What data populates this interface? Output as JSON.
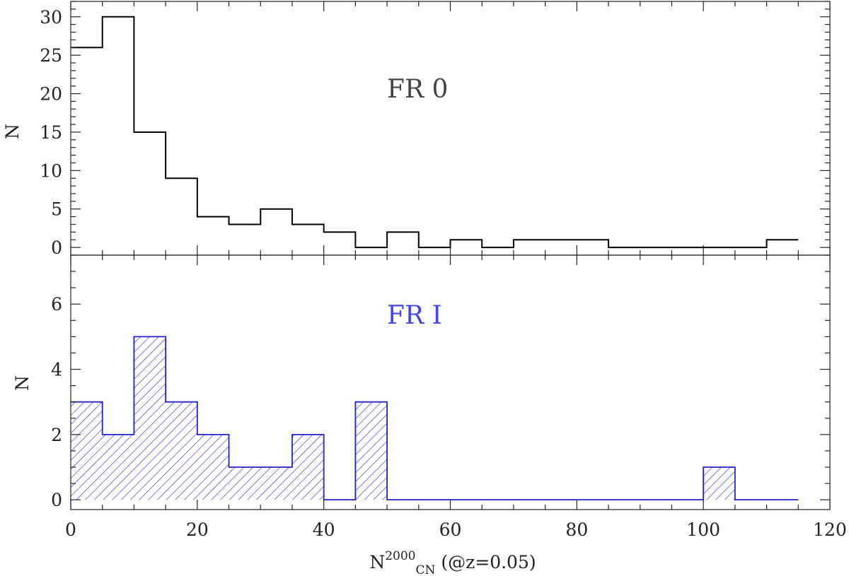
{
  "x_axis": {
    "label_main": "N",
    "label_sup": "2000",
    "label_sub": "CN",
    "label_suffix": " (@z=0.05)",
    "ticks": [
      "0",
      "20",
      "40",
      "60",
      "80",
      "100",
      "120"
    ]
  },
  "chart_data": [
    {
      "type": "histogram",
      "panel": "top",
      "annotation": "FR 0",
      "annotation_color": "#444444",
      "line_color": "#000000",
      "filled": false,
      "ylabel": "N",
      "xlim": [
        0,
        120
      ],
      "ylim": [
        -1,
        32
      ],
      "yticks": [
        "0",
        "5",
        "10",
        "15",
        "20",
        "25",
        "30"
      ],
      "bin_width": 5,
      "bin_edges": [
        0,
        5,
        10,
        15,
        20,
        25,
        30,
        35,
        40,
        45,
        50,
        55,
        60,
        65,
        70,
        75,
        80,
        85,
        90,
        95,
        100,
        105,
        110,
        115
      ],
      "values": [
        26,
        30,
        15,
        9,
        4,
        3,
        5,
        3,
        2,
        0,
        2,
        0,
        1,
        0,
        1,
        1,
        1,
        0,
        0,
        0,
        0,
        0,
        1
      ]
    },
    {
      "type": "histogram",
      "panel": "bottom",
      "annotation": "FR I",
      "annotation_color": "#4444ee",
      "line_color": "#2222cc",
      "filled": true,
      "fill_pattern": "diagonal-hatch",
      "ylabel": "N",
      "xlim": [
        0,
        120
      ],
      "ylim": [
        -0.3,
        7.5
      ],
      "yticks": [
        "0",
        "2",
        "4",
        "6"
      ],
      "bin_width": 5,
      "bin_edges": [
        0,
        5,
        10,
        15,
        20,
        25,
        30,
        35,
        40,
        45,
        50,
        55,
        60,
        65,
        70,
        75,
        80,
        85,
        90,
        95,
        100,
        105,
        110,
        115
      ],
      "values": [
        3,
        2,
        5,
        3,
        2,
        1,
        1,
        2,
        0,
        3,
        0,
        0,
        0,
        0,
        0,
        0,
        0,
        0,
        0,
        0,
        1,
        0,
        0
      ]
    }
  ]
}
